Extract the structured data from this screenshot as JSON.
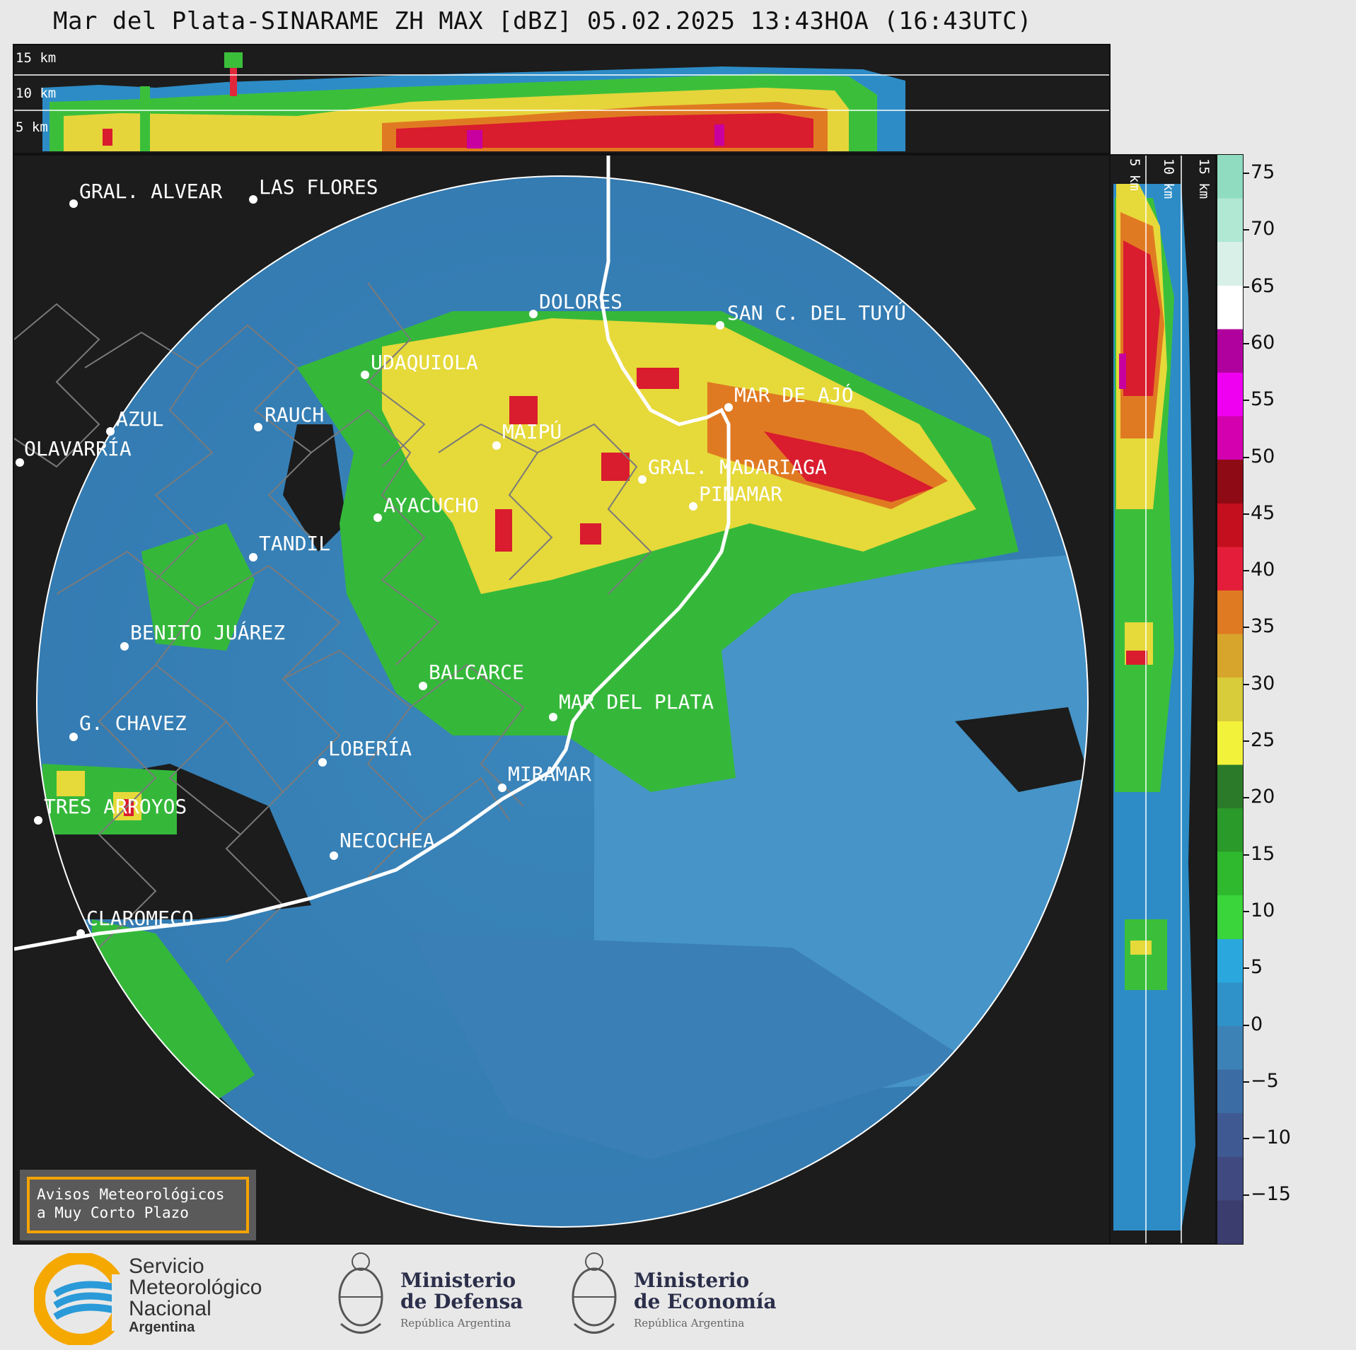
{
  "title": "Mar del Plata-SINARAME ZH MAX [dBZ] 05.02.2025 13:43HOA (16:43UTC)",
  "top_panel": {
    "altitude_labels": [
      "15 km",
      "10 km",
      "5 km"
    ]
  },
  "side_panel": {
    "altitude_labels": [
      "5 km",
      "10 km",
      "15 km"
    ]
  },
  "colorbar": {
    "ticks": [
      "75",
      "70",
      "65",
      "60",
      "55",
      "50",
      "45",
      "40",
      "35",
      "30",
      "25",
      "20",
      "15",
      "10",
      "5",
      "0",
      "−5",
      "−10",
      "−15"
    ],
    "colors": [
      "#3b3d6e",
      "#414a80",
      "#3f5a92",
      "#3b6ca4",
      "#3d82b6",
      "#2f92c8",
      "#2aa8dd",
      "#3ad53a",
      "#2fb92f",
      "#2a9a2a",
      "#2a7a2a",
      "#f2f23a",
      "#d8cc3a",
      "#d8a52c",
      "#e07a22",
      "#e41e3a",
      "#c40f1e",
      "#8e0a14",
      "#d400b0",
      "#f000f0",
      "#b0009e",
      "#ffffff",
      "#d8f0e8",
      "#b0e8d4",
      "#90dcc0"
    ]
  },
  "map": {
    "towns": [
      {
        "name": "GRAL. ALVEAR"
      },
      {
        "name": "LAS FLORES"
      },
      {
        "name": "DOLORES"
      },
      {
        "name": "SAN C. DEL TUYÚ"
      },
      {
        "name": "UDAQUIOLA"
      },
      {
        "name": "MAR DE AJÓ"
      },
      {
        "name": "AZUL"
      },
      {
        "name": "RAUCH"
      },
      {
        "name": "OLAVARRÍA"
      },
      {
        "name": "MAIPÚ"
      },
      {
        "name": "GRAL. MADARIAGA"
      },
      {
        "name": "PINAMAR"
      },
      {
        "name": "AYACUCHO"
      },
      {
        "name": "TANDIL"
      },
      {
        "name": "BENITO JUÁREZ"
      },
      {
        "name": "BALCARCE"
      },
      {
        "name": "MAR DEL PLATA"
      },
      {
        "name": "G. CHAVEZ"
      },
      {
        "name": "LOBERÍA"
      },
      {
        "name": "MIRAMAR"
      },
      {
        "name": "TRES ARROYOS"
      },
      {
        "name": "NECOCHEA"
      },
      {
        "name": "CLAROMECO"
      }
    ],
    "notice_lines": [
      "Avisos Meteorológicos",
      "a Muy Corto Plazo"
    ]
  },
  "logos": {
    "smn": {
      "line1": "Servicio",
      "line2": "Meteorológico",
      "line3": "Nacional",
      "line4": "Argentina"
    },
    "defensa": {
      "line1": "Ministerio",
      "line2": "de Defensa",
      "line3": "República Argentina"
    },
    "economia": {
      "line1": "Ministerio",
      "line2": "de Economía",
      "line3": "República Argentina"
    }
  }
}
